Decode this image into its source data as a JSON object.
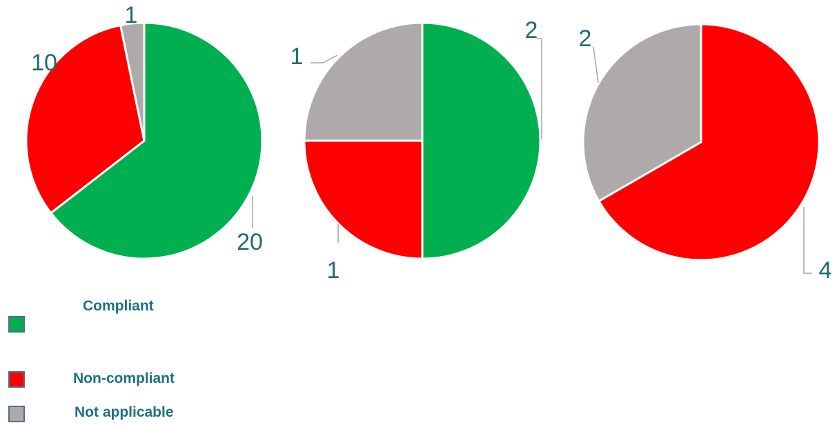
{
  "chart_data": [
    {
      "type": "pie",
      "categories": [
        "Compliant",
        "Non-compliant",
        "Not applicable"
      ],
      "values": [
        20,
        10,
        1
      ],
      "data_labels": [
        "20",
        "10",
        "1"
      ]
    },
    {
      "type": "pie",
      "categories": [
        "Compliant",
        "Non-compliant",
        "Not applicable"
      ],
      "values": [
        2,
        1,
        1
      ],
      "data_labels": [
        "2",
        "1",
        "1"
      ]
    },
    {
      "type": "pie",
      "categories": [
        "Non-compliant",
        "Not applicable"
      ],
      "values": [
        4,
        2
      ],
      "data_labels": [
        "4",
        "2"
      ]
    }
  ],
  "colors": {
    "Compliant": "#00b050",
    "Non-compliant": "#ff0000",
    "Not applicable": "#aeaaaa"
  },
  "legend": {
    "items": [
      {
        "label": "Compliant",
        "color": "#00b050"
      },
      {
        "label": "Non-compliant",
        "color": "#ff0000"
      },
      {
        "label": "Not applicable",
        "color": "#aeaaaa"
      }
    ]
  }
}
